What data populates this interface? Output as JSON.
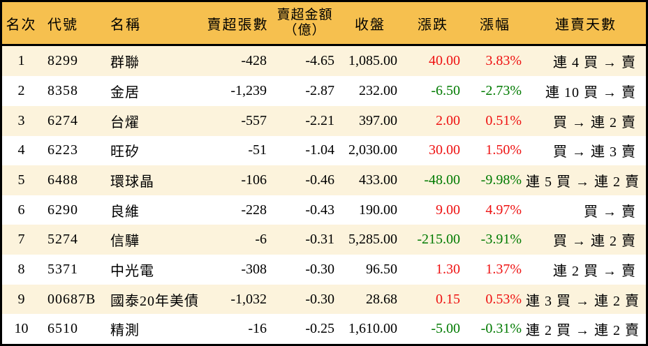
{
  "colors": {
    "header_bg": "#F6C04F",
    "stripe_bg": "#FCF3DC",
    "row_bg": "#FFFFFF",
    "up_red": "#EE1111",
    "down_green": "#007A00",
    "text": "#000000",
    "border": "#000000"
  },
  "table": {
    "headers": {
      "rank": "名次",
      "code": "代號",
      "name": "名稱",
      "sell_volume": "賣超張數",
      "sell_amount_line1": "賣超金額",
      "sell_amount_line2": "（億）",
      "close": "收盤",
      "change": "漲跌",
      "change_pct": "漲幅",
      "streak": "連賣天數"
    },
    "rows": [
      {
        "rank": "1",
        "code": "8299",
        "name": "群聯",
        "sell_volume": "-428",
        "sell_amount": "-4.65",
        "close": "1,085.00",
        "change": "40.00",
        "change_pct": "3.83%",
        "trend": "up",
        "streak": "連 4 買 → 賣"
      },
      {
        "rank": "2",
        "code": "8358",
        "name": "金居",
        "sell_volume": "-1,239",
        "sell_amount": "-2.87",
        "close": "232.00",
        "change": "-6.50",
        "change_pct": "-2.73%",
        "trend": "down",
        "streak": "連 10 買 → 賣"
      },
      {
        "rank": "3",
        "code": "6274",
        "name": "台燿",
        "sell_volume": "-557",
        "sell_amount": "-2.21",
        "close": "397.00",
        "change": "2.00",
        "change_pct": "0.51%",
        "trend": "up",
        "streak": "買 → 連 2 賣"
      },
      {
        "rank": "4",
        "code": "6223",
        "name": "旺矽",
        "sell_volume": "-51",
        "sell_amount": "-1.04",
        "close": "2,030.00",
        "change": "30.00",
        "change_pct": "1.50%",
        "trend": "up",
        "streak": "買 → 連 3 賣"
      },
      {
        "rank": "5",
        "code": "6488",
        "name": "環球晶",
        "sell_volume": "-106",
        "sell_amount": "-0.46",
        "close": "433.00",
        "change": "-48.00",
        "change_pct": "-9.98%",
        "trend": "down",
        "streak": "連 5 買 → 連 2 賣"
      },
      {
        "rank": "6",
        "code": "6290",
        "name": "良維",
        "sell_volume": "-228",
        "sell_amount": "-0.43",
        "close": "190.00",
        "change": "9.00",
        "change_pct": "4.97%",
        "trend": "up",
        "streak": "買 → 賣"
      },
      {
        "rank": "7",
        "code": "5274",
        "name": "信驊",
        "sell_volume": "-6",
        "sell_amount": "-0.31",
        "close": "5,285.00",
        "change": "-215.00",
        "change_pct": "-3.91%",
        "trend": "down",
        "streak": "買 → 連 2 賣"
      },
      {
        "rank": "8",
        "code": "5371",
        "name": "中光電",
        "sell_volume": "-308",
        "sell_amount": "-0.30",
        "close": "96.50",
        "change": "1.30",
        "change_pct": "1.37%",
        "trend": "up",
        "streak": "連 2 買 → 賣"
      },
      {
        "rank": "9",
        "code": "00687B",
        "name": "國泰20年美債",
        "sell_volume": "-1,032",
        "sell_amount": "-0.30",
        "close": "28.68",
        "change": "0.15",
        "change_pct": "0.53%",
        "trend": "up",
        "streak": "連 3 買 → 連 2 賣"
      },
      {
        "rank": "10",
        "code": "6510",
        "name": "精測",
        "sell_volume": "-16",
        "sell_amount": "-0.25",
        "close": "1,610.00",
        "change": "-5.00",
        "change_pct": "-0.31%",
        "trend": "down",
        "streak": "連 2 買 → 連 2 賣"
      }
    ]
  }
}
